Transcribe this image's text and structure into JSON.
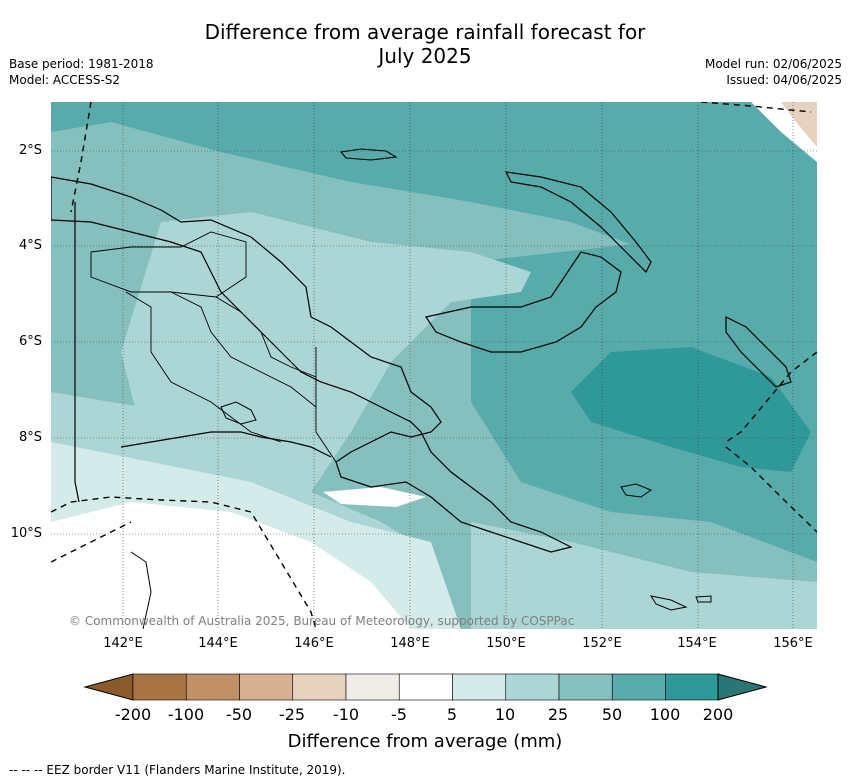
{
  "title_line1": "Difference from average rainfall forecast for",
  "title_line2": "July 2025",
  "base_period": "Base period: 1981-2018",
  "model": "Model: ACCESS-S2",
  "model_run": "Model run: 02/06/2025",
  "issued": "Issued: 04/06/2025",
  "copyright": "© Commonwealth of Australia 2025, Bureau of Meteorology, supported by COSPPac",
  "lat_ticks": [
    "2°S",
    "4°S",
    "6°S",
    "8°S",
    "10°S"
  ],
  "lon_ticks": [
    "142°E",
    "144°E",
    "146°E",
    "148°E",
    "150°E",
    "152°E",
    "154°E",
    "156°E"
  ],
  "colorbar": {
    "title": "Difference from average (mm)",
    "labels": [
      "-200",
      "-100",
      "-50",
      "-25",
      "-10",
      "-5",
      "5",
      "10",
      "25",
      "50",
      "100",
      "200"
    ],
    "colors": [
      "#8b5a2b",
      "#a97444",
      "#c09066",
      "#d6b292",
      "#e7d2c0",
      "#f0ede9",
      "#ffffff",
      "#d4ebe9",
      "#acd6d5",
      "#85bfbe",
      "#58abab",
      "#2f9898",
      "#2a7676"
    ]
  },
  "legend_eez": "-- -- -- EEZ border V11 (Flanders Marine Institute, 2019)."
}
